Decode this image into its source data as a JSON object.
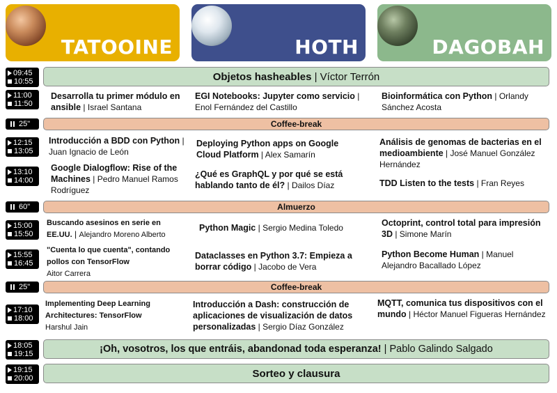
{
  "tracks": [
    {
      "name": "TATOOINE",
      "color": "#e8b000"
    },
    {
      "name": "HOTH",
      "color": "#3e4f8c"
    },
    {
      "name": "DAGOBAH",
      "color": "#8cb88c"
    }
  ],
  "slots": {
    "s1": {
      "start": "09:45",
      "end": "10:55"
    },
    "s2": {
      "start": "11:00",
      "end": "11:50"
    },
    "b1": {
      "duration": "25\""
    },
    "s3": {
      "start": "12:15",
      "end": "13:05"
    },
    "s4": {
      "start": "13:10",
      "end": "14:00"
    },
    "b2": {
      "duration": "60\""
    },
    "s5": {
      "start": "15:00",
      "end": "15:50"
    },
    "s6": {
      "start": "15:55",
      "end": "16:45"
    },
    "b3": {
      "duration": "25\""
    },
    "s7": {
      "start": "17:10",
      "end": "18:00"
    },
    "s8": {
      "start": "18:05",
      "end": "19:15"
    },
    "s9": {
      "start": "19:15",
      "end": "20:00"
    }
  },
  "plenary": {
    "keynote1": {
      "title": "Objetos hasheables",
      "speaker": "Víctor Terrón"
    },
    "keynote2": {
      "title": "¡Oh, vosotros, los que entráis, abandonad toda esperanza!",
      "speaker": "Pablo Galindo Salgado"
    },
    "closing": {
      "title": "Sorteo y clausura"
    }
  },
  "breaks": {
    "coffee1": "Coffee-break",
    "lunch": "Almuerzo",
    "coffee2": "Coffee-break"
  },
  "talks": {
    "t2a": {
      "title": "Desarrolla tu primer módulo en ansible",
      "speaker": "Israel Santana"
    },
    "t2b": {
      "title": "EGI Notebooks: Jupyter como servicio",
      "speaker": "Enol Fernández del Castillo"
    },
    "t2c": {
      "title": "Bioinformática con Python",
      "speaker": "Orlandy Sánchez Acosta"
    },
    "t3a": {
      "title": "Introducción a BDD con Python",
      "speaker": "Juan Ignacio de León"
    },
    "t3b": {
      "title": "Deploying Python apps on Google Cloud Platform",
      "speaker": "Alex Samarín"
    },
    "t3c": {
      "title": "Análisis de genomas de bacterias en el medioambiente",
      "speaker": "José Manuel González Hernández"
    },
    "t4a": {
      "title": "Google Dialogflow: Rise of the Machines",
      "speaker": "Pedro Manuel Ramos Rodríguez"
    },
    "t4b": {
      "title": "¿Qué es GraphQL y por qué se está hablando tanto de él?",
      "speaker": "Dailos Díaz"
    },
    "t4c": {
      "title": "TDD Listen to the tests",
      "speaker": "Fran Reyes"
    },
    "t5a": {
      "title": "Buscando asesinos en serie en EE.UU.",
      "speaker": "Alejandro Moreno Alberto"
    },
    "t5b": {
      "title": "Python Magic",
      "speaker": "Sergio Medina Toledo"
    },
    "t5c": {
      "title": "Octoprint, control total para impresión 3D",
      "speaker": "Simone Marín"
    },
    "t6a": {
      "title": "\"Cuenta lo que cuenta\", contando pollos con TensorFlow",
      "speaker": "Aitor Carrera"
    },
    "t6b": {
      "title": "Dataclasses en Python 3.7: Empieza a borrar código",
      "speaker": "Jacobo de Vera"
    },
    "t6c": {
      "title": "Python Become Human",
      "speaker": "Manuel Alejandro Bacallado López"
    },
    "t7a": {
      "title": "Implementing Deep Learning Architectures: TensorFlow",
      "speaker": "Harshul Jain"
    },
    "t7b": {
      "title": "Introducción a Dash: construcción de aplicaciones de visualización de datos personalizadas",
      "speaker": "Sergio Díaz González"
    },
    "t7c": {
      "title": "MQTT, comunica tus dispositivos con el mundo",
      "speaker": "Héctor Manuel Figueras Hernández"
    }
  }
}
